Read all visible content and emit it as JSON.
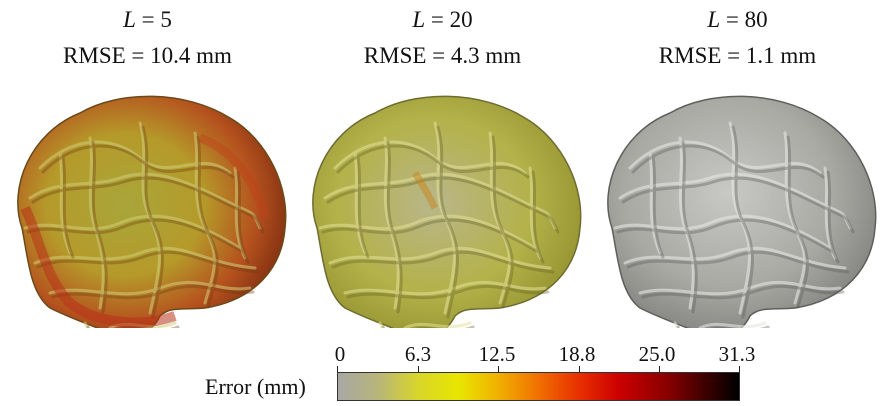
{
  "panels": [
    {
      "l_label": "L = 5",
      "rmse_label": "RMSE = 10.4 mm",
      "image": "brain-surface-error-map-high"
    },
    {
      "l_label": "L = 20",
      "rmse_label": "RMSE = 4.3 mm",
      "image": "brain-surface-error-map-medium"
    },
    {
      "l_label": "L = 80",
      "rmse_label": "RMSE = 1.1 mm",
      "image": "brain-surface-error-map-low"
    }
  ],
  "colorbar": {
    "label": "Error (mm)",
    "ticks": [
      "0",
      "6.3",
      "12.5",
      "18.8",
      "25.0",
      "31.3"
    ],
    "range": [
      0,
      31.3
    ],
    "colors": [
      "#a8a8a4",
      "#e8e600",
      "#f07000",
      "#cc0000",
      "#000000"
    ]
  }
}
